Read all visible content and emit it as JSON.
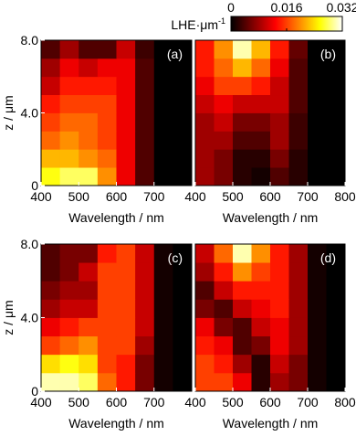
{
  "colorbar": {
    "title": "LHE·μm",
    "title_sup": "-1",
    "lim": [
      0,
      0.032
    ],
    "ticks": [
      0,
      0.016,
      0.032
    ],
    "colormap": "hot"
  },
  "chart_data": [
    {
      "type": "heatmap",
      "label": "(a)",
      "xlabel": "Wavelength / nm",
      "ylabel": "z / μm",
      "xbins": [
        400,
        450,
        500,
        550,
        600,
        650,
        700,
        750,
        800
      ],
      "ybins": [
        0,
        1,
        2,
        3,
        4,
        5,
        6,
        7,
        8
      ],
      "xlim": [
        400,
        800
      ],
      "ylim": [
        0,
        8
      ],
      "xticks": [
        400,
        500,
        600,
        700
      ],
      "yticks": [
        0,
        {
          "value": 4,
          "label": "4.0"
        },
        {
          "value": 8,
          "label": "8.0"
        }
      ],
      "values": [
        [
          0.026,
          0.028,
          0.028,
          0.02,
          0.012,
          0.004,
          0,
          0
        ],
        [
          0.022,
          0.022,
          0.02,
          0.018,
          0.012,
          0.004,
          0,
          0
        ],
        [
          0.018,
          0.02,
          0.018,
          0.016,
          0.012,
          0.004,
          0,
          0
        ],
        [
          0.016,
          0.018,
          0.018,
          0.016,
          0.012,
          0.004,
          0,
          0
        ],
        [
          0.014,
          0.016,
          0.016,
          0.016,
          0.012,
          0.004,
          0,
          0
        ],
        [
          0.01,
          0.014,
          0.014,
          0.014,
          0.012,
          0.004,
          0,
          0
        ],
        [
          0.008,
          0.012,
          0.01,
          0.012,
          0.012,
          0.004,
          0,
          0
        ],
        [
          0.004,
          0.008,
          0.004,
          0.004,
          0.01,
          0.003,
          0,
          0
        ]
      ]
    },
    {
      "type": "heatmap",
      "label": "(b)",
      "xlabel": "Wavelength / nm",
      "xbins": [
        400,
        450,
        500,
        550,
        600,
        650,
        700,
        750,
        800
      ],
      "ybins": [
        0,
        1,
        2,
        3,
        4,
        5,
        6,
        7,
        8
      ],
      "xlim": [
        400,
        800
      ],
      "ylim": [
        0,
        8
      ],
      "xticks": [
        400,
        500,
        600,
        700,
        800
      ],
      "values": [
        [
          0.008,
          0.006,
          0.002,
          0.001,
          0.004,
          0.002,
          0,
          0
        ],
        [
          0.008,
          0.006,
          0.002,
          0.002,
          0.006,
          0.002,
          0,
          0
        ],
        [
          0.008,
          0.008,
          0.004,
          0.004,
          0.008,
          0.003,
          0,
          0
        ],
        [
          0.008,
          0.01,
          0.006,
          0.006,
          0.008,
          0.003,
          0,
          0
        ],
        [
          0.01,
          0.012,
          0.01,
          0.01,
          0.01,
          0.004,
          0,
          0
        ],
        [
          0.012,
          0.016,
          0.016,
          0.014,
          0.01,
          0.004,
          0,
          0
        ],
        [
          0.014,
          0.018,
          0.022,
          0.018,
          0.012,
          0.004,
          0,
          0
        ],
        [
          0.014,
          0.02,
          0.03,
          0.022,
          0.014,
          0.005,
          0,
          0
        ]
      ]
    },
    {
      "type": "heatmap",
      "label": "(c)",
      "xlabel": "Wavelength / nm",
      "ylabel": "z / μm",
      "xbins": [
        400,
        450,
        500,
        550,
        600,
        650,
        700,
        750,
        800
      ],
      "ybins": [
        0,
        1,
        2,
        3,
        4,
        5,
        6,
        7,
        8
      ],
      "xlim": [
        400,
        800
      ],
      "ylim": [
        0,
        8
      ],
      "xticks": [
        400,
        500,
        600,
        700
      ],
      "yticks": [
        0,
        {
          "value": 4,
          "label": "4.0"
        },
        {
          "value": 8,
          "label": "8.0"
        }
      ],
      "values": [
        [
          0.03,
          0.03,
          0.028,
          0.018,
          0.014,
          0.006,
          0.001,
          0
        ],
        [
          0.024,
          0.026,
          0.024,
          0.016,
          0.014,
          0.006,
          0.001,
          0
        ],
        [
          0.016,
          0.018,
          0.02,
          0.016,
          0.016,
          0.008,
          0.001,
          0
        ],
        [
          0.012,
          0.014,
          0.016,
          0.016,
          0.016,
          0.01,
          0.001,
          0
        ],
        [
          0.008,
          0.01,
          0.01,
          0.016,
          0.016,
          0.01,
          0.001,
          0
        ],
        [
          0.006,
          0.008,
          0.008,
          0.016,
          0.016,
          0.01,
          0.001,
          0
        ],
        [
          0.004,
          0.006,
          0.01,
          0.016,
          0.016,
          0.01,
          0.001,
          0
        ],
        [
          0.004,
          0.006,
          0.006,
          0.014,
          0.016,
          0.01,
          0.001,
          0
        ]
      ]
    },
    {
      "type": "heatmap",
      "label": "(d)",
      "xlabel": "Wavelength / nm",
      "xbins": [
        400,
        450,
        500,
        550,
        600,
        650,
        700,
        750,
        800
      ],
      "ybins": [
        0,
        1,
        2,
        3,
        4,
        5,
        6,
        7,
        8
      ],
      "xlim": [
        400,
        800
      ],
      "ylim": [
        0,
        8
      ],
      "xticks": [
        400,
        500,
        600,
        700,
        800
      ],
      "values": [
        [
          0.016,
          0.016,
          0.012,
          0.002,
          0.008,
          0.006,
          0.001,
          0
        ],
        [
          0.016,
          0.014,
          0.008,
          0.002,
          0.01,
          0.006,
          0.001,
          0
        ],
        [
          0.014,
          0.012,
          0.004,
          0.006,
          0.012,
          0.008,
          0.001,
          0
        ],
        [
          0.012,
          0.006,
          0.004,
          0.01,
          0.012,
          0.008,
          0.001,
          0
        ],
        [
          0.006,
          0.004,
          0.01,
          0.012,
          0.014,
          0.008,
          0.001,
          0
        ],
        [
          0.004,
          0.01,
          0.014,
          0.014,
          0.014,
          0.008,
          0.001,
          0
        ],
        [
          0.008,
          0.014,
          0.02,
          0.016,
          0.014,
          0.008,
          0.001,
          0
        ],
        [
          0.01,
          0.018,
          0.03,
          0.02,
          0.014,
          0.008,
          0.001,
          0
        ]
      ]
    }
  ]
}
